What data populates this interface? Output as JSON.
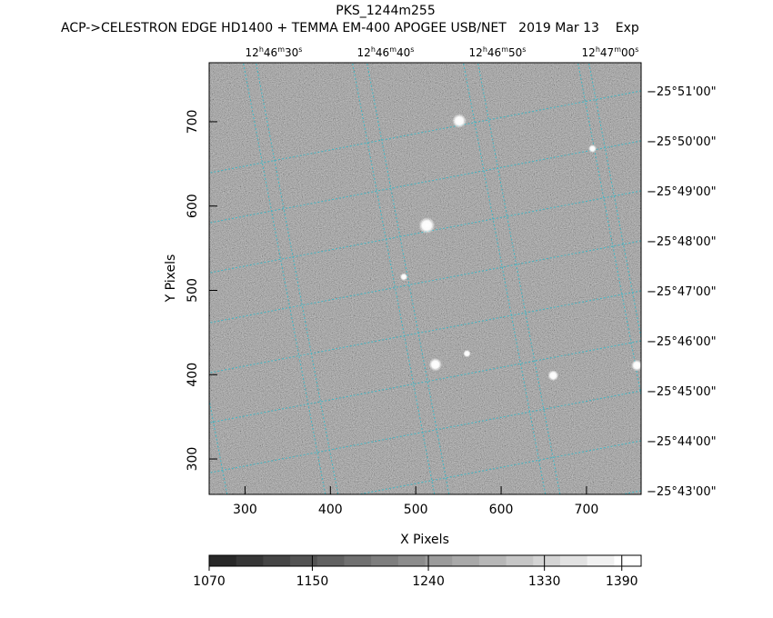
{
  "header": {
    "title": "PKS_1244m255",
    "subtitle": "ACP->CELESTRON EDGE HD1400 + TEMMA EM-400 APOGEE USB/NET   2019 Mar 13    Exp"
  },
  "chart_data": {
    "type": "heatmap",
    "xlabel": "X Pixels",
    "ylabel": "Y Pixels",
    "xlim": [
      258,
      764
    ],
    "ylim": [
      258,
      770
    ],
    "x_ticks": [
      300,
      400,
      500,
      600,
      700
    ],
    "y_ticks": [
      300,
      400,
      500,
      600,
      700
    ],
    "ra_ticks": [
      {
        "h": "12",
        "m": "46",
        "s": "30"
      },
      {
        "h": "12",
        "m": "46",
        "s": "40"
      },
      {
        "h": "12",
        "m": "46",
        "s": "50"
      },
      {
        "h": "12",
        "m": "47",
        "s": "00"
      }
    ],
    "dec_ticks": [
      "−25°51'00\"",
      "−25°50'00\"",
      "−25°49'00\"",
      "−25°48'00\"",
      "−25°47'00\"",
      "−25°46'00\"",
      "−25°45'00\"",
      "−25°44'00\"",
      "−25°43'00\""
    ],
    "colorbar": {
      "min": 1070,
      "max": 1405,
      "labels": [
        1070,
        1150,
        1240,
        1330,
        1390
      ]
    },
    "stars": [
      {
        "x": 551,
        "y": 701,
        "strength": 0.8
      },
      {
        "x": 513,
        "y": 577,
        "strength": 1.0
      },
      {
        "x": 523,
        "y": 412,
        "strength": 0.7
      },
      {
        "x": 661,
        "y": 399,
        "strength": 0.5
      },
      {
        "x": 759,
        "y": 411,
        "strength": 0.55
      },
      {
        "x": 707,
        "y": 668,
        "strength": 0.25
      },
      {
        "x": 486,
        "y": 516,
        "strength": 0.2
      },
      {
        "x": 560,
        "y": 425,
        "strength": 0.2
      }
    ],
    "grid": true,
    "grid_color": "#3fb6c4"
  }
}
